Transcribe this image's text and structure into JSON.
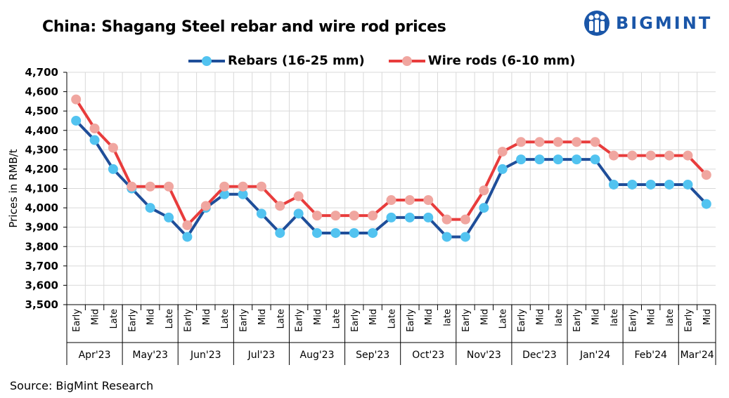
{
  "header": {
    "title": "China: Shagang Steel rebar and wire rod prices",
    "logo_text": "BIGMINT",
    "logo_icon": "people-group-icon"
  },
  "footer": {
    "source": "Source: BigMint Research"
  },
  "colors": {
    "rebar_line": "#1f4e99",
    "rebar_marker": "#52c3f0",
    "wire_line": "#e83c3c",
    "wire_marker": "#f0a6a0",
    "brand": "#1a56a8"
  },
  "chart_data": {
    "type": "line",
    "title": "China: Shagang Steel rebar and wire rod prices",
    "xlabel": "",
    "ylabel": "Prices in RMB/t",
    "ylim": [
      3500,
      4700
    ],
    "yticks": [
      3500,
      3600,
      3700,
      3800,
      3900,
      4000,
      4100,
      4200,
      4300,
      4400,
      4500,
      4600,
      4700
    ],
    "ytick_labels": [
      "3,500",
      "3,600",
      "3,700",
      "3,800",
      "3,900",
      "4,000",
      "4,100",
      "4,200",
      "4,300",
      "4,400",
      "4,500",
      "4,600",
      "4,700"
    ],
    "grid": true,
    "legend_position": "top",
    "x": [
      "Early",
      "Mid",
      "Late",
      "Early",
      "Mid",
      "Late",
      "Early",
      "Mid",
      "Late",
      "Early",
      "Mid",
      "Late",
      "Early",
      "Mid",
      "Late",
      "Early",
      "Mid",
      "Late",
      "Early",
      "Mid",
      "late",
      "Early",
      "Mid",
      "Late",
      "Early",
      "Mid",
      "late",
      "Early",
      "Mid",
      "late",
      "Early",
      "Mid",
      "late",
      "Early",
      "Mid"
    ],
    "groups": [
      {
        "label": "Apr'23",
        "count": 3
      },
      {
        "label": "May'23",
        "count": 3
      },
      {
        "label": "Jun'23",
        "count": 3
      },
      {
        "label": "Jul'23",
        "count": 3
      },
      {
        "label": "Aug'23",
        "count": 3
      },
      {
        "label": "Sep'23",
        "count": 3
      },
      {
        "label": "Oct'23",
        "count": 3
      },
      {
        "label": "Nov'23",
        "count": 3
      },
      {
        "label": "Dec'23",
        "count": 3
      },
      {
        "label": "Jan'24",
        "count": 3
      },
      {
        "label": "Feb'24",
        "count": 3
      },
      {
        "label": "Mar'24",
        "count": 2
      }
    ],
    "series": [
      {
        "name": "Rebars (16-25 mm)",
        "values": [
          4450,
          4350,
          4200,
          4100,
          4000,
          3950,
          3850,
          4000,
          4070,
          4070,
          3970,
          3870,
          3970,
          3870,
          3870,
          3870,
          3870,
          3950,
          3950,
          3950,
          3850,
          3850,
          4000,
          4200,
          4250,
          4250,
          4250,
          4250,
          4250,
          4120,
          4120,
          4120,
          4120,
          4120,
          4020
        ]
      },
      {
        "name": "Wire rods (6-10 mm)",
        "values": [
          4560,
          4410,
          4310,
          4110,
          4110,
          4110,
          3910,
          4010,
          4110,
          4110,
          4110,
          4010,
          4060,
          3960,
          3960,
          3960,
          3960,
          4040,
          4040,
          4040,
          3940,
          3940,
          4090,
          4290,
          4340,
          4340,
          4340,
          4340,
          4340,
          4270,
          4270,
          4270,
          4270,
          4270,
          4170
        ]
      }
    ]
  }
}
